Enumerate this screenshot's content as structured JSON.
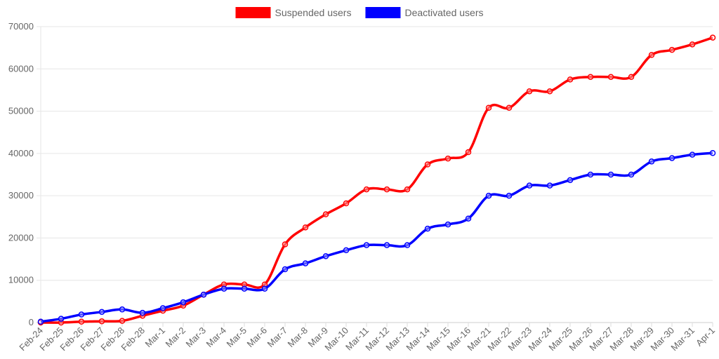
{
  "chart_data": {
    "type": "line",
    "categories": [
      "Feb-24",
      "Feb-25",
      "Feb-26",
      "Feb-27",
      "Feb-28",
      "Feb-28",
      "Mar-1",
      "Mar-2",
      "Mar-3",
      "Mar-4",
      "Mar-5",
      "Mar-6",
      "Mar-7",
      "Mar-8",
      "Mar-9",
      "Mar-10",
      "Mar-11",
      "Mar-12",
      "Mar-13",
      "Mar-14",
      "Mar-15",
      "Mar-16",
      "Mar-21",
      "Mar-22",
      "Mar-23",
      "Mar-24",
      "Mar-25",
      "Mar-26",
      "Mar-27",
      "Mar-28",
      "Mar-29",
      "Mar-30",
      "Mar-31",
      "Apr-1"
    ],
    "series": [
      {
        "name": "Suspended users",
        "color": "#ff0000",
        "values": [
          0,
          0,
          200,
          300,
          400,
          1600,
          2800,
          4000,
          6600,
          9000,
          9000,
          9000,
          18500,
          22500,
          25600,
          28200,
          31500,
          31500,
          31500,
          37400,
          38800,
          40300,
          50800,
          50800,
          54700,
          54700,
          57500,
          58100,
          58100,
          58100,
          63300,
          64500,
          65800,
          67400
        ]
      },
      {
        "name": "Deactivated users",
        "color": "#0000ff",
        "values": [
          200,
          900,
          1900,
          2500,
          3100,
          2300,
          3400,
          4800,
          6600,
          8000,
          8000,
          8000,
          12600,
          14000,
          15700,
          17100,
          18300,
          18300,
          18300,
          22200,
          23200,
          24600,
          30000,
          30000,
          32400,
          32400,
          33700,
          35000,
          35000,
          35000,
          38100,
          38900,
          39700,
          40100
        ]
      }
    ],
    "yticks": [
      "0",
      "10000",
      "20000",
      "30000",
      "40000",
      "50000",
      "60000",
      "70000"
    ],
    "ylim": [
      0,
      70000
    ],
    "grid": true,
    "legend_position": "top-center"
  }
}
